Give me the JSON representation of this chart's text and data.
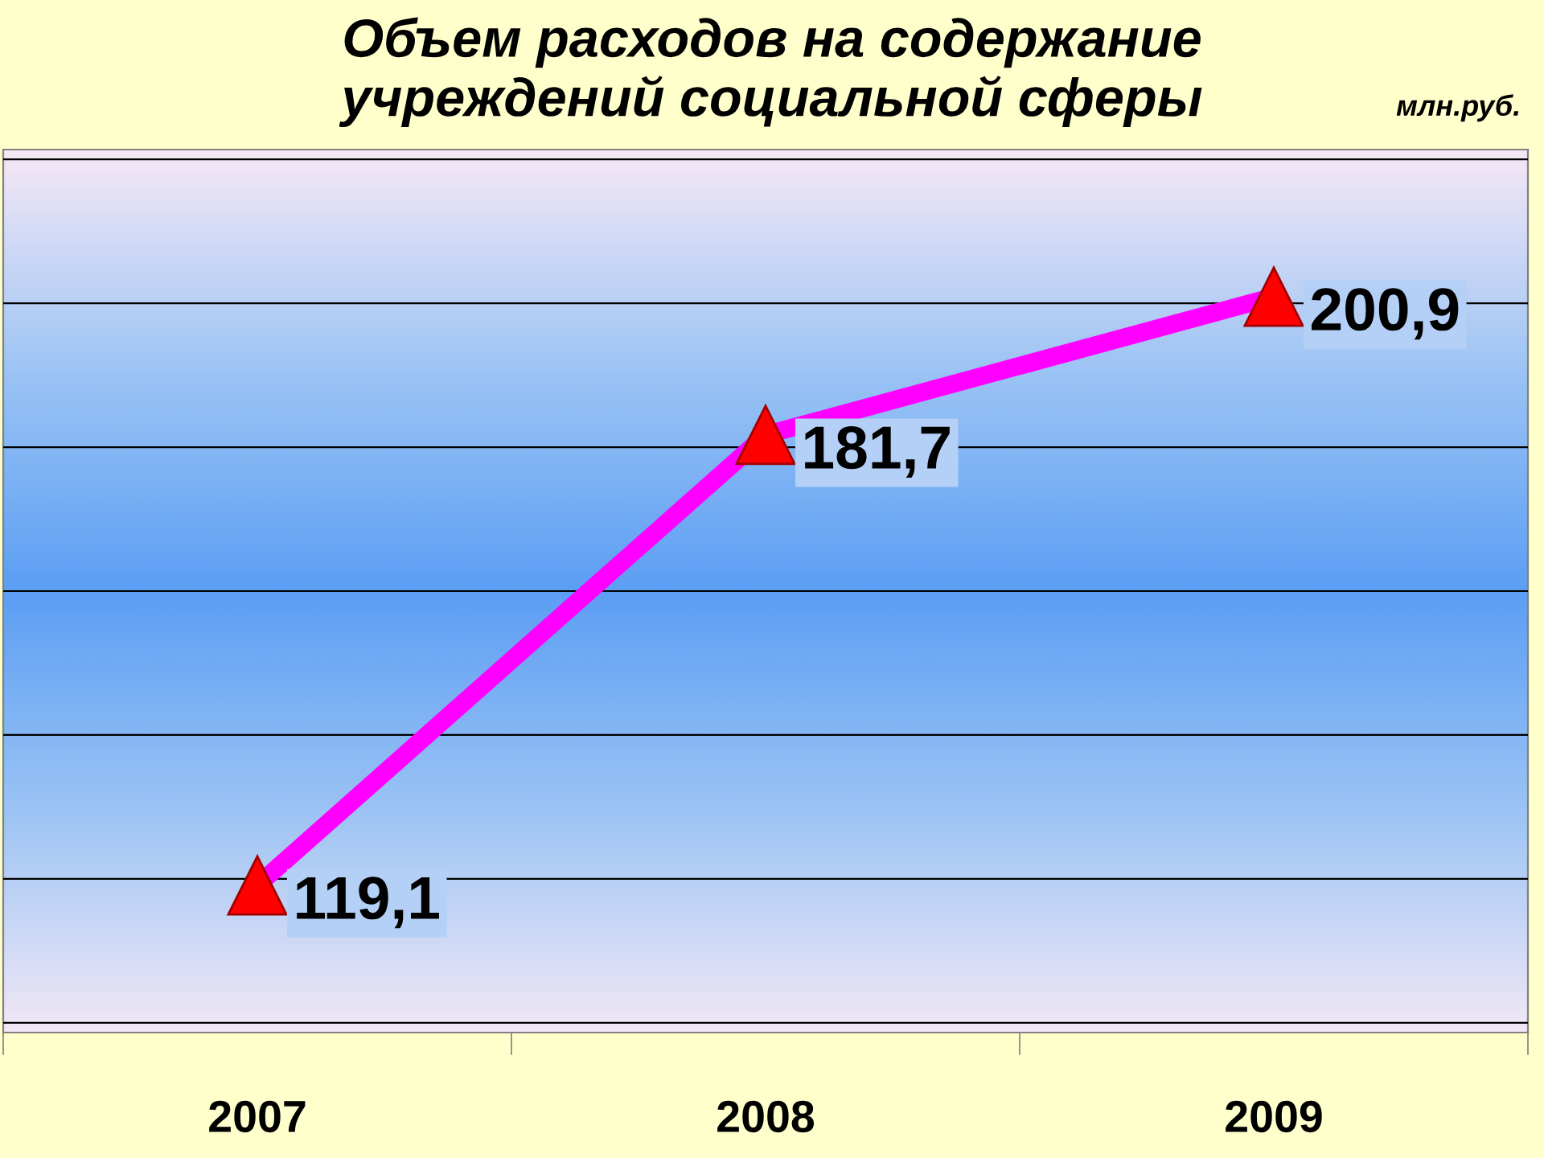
{
  "chart_data": {
    "type": "line",
    "title": "Объем расходов на содержание\nучреждений социальной сферы",
    "annotations": [
      "млн.руб."
    ],
    "categories": [
      "2007",
      "2008",
      "2009"
    ],
    "series": [
      {
        "color": "#ff00ff",
        "values": [
          119.1,
          181.7,
          200.9
        ],
        "value_labels": [
          "119,1",
          "181,7",
          "200,9"
        ]
      }
    ],
    "marker": "triangle",
    "grid": "y",
    "tick_labels": "x"
  }
}
